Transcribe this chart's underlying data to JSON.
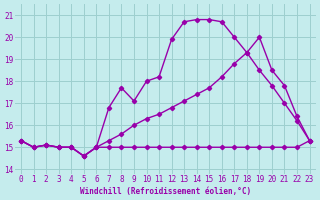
{
  "background_color": "#c5eced",
  "grid_color": "#9dcfcf",
  "line_color": "#9900aa",
  "marker": "D",
  "markersize": 2.2,
  "linewidth": 1.0,
  "xlim": [
    -0.5,
    23.5
  ],
  "ylim": [
    13.8,
    21.5
  ],
  "yticks": [
    14,
    15,
    16,
    17,
    18,
    19,
    20,
    21
  ],
  "xticks": [
    0,
    1,
    2,
    3,
    4,
    5,
    6,
    7,
    8,
    9,
    10,
    11,
    12,
    13,
    14,
    15,
    16,
    17,
    18,
    19,
    20,
    21,
    22,
    23
  ],
  "xlabel": "Windchill (Refroidissement éolien,°C)",
  "line1_x": [
    0,
    1,
    2,
    3,
    4,
    5,
    6,
    7,
    8,
    9,
    10,
    11,
    12,
    13,
    14,
    15,
    16,
    17,
    18,
    19,
    20,
    21,
    22,
    23
  ],
  "line1_y": [
    15.3,
    15.0,
    15.1,
    15.0,
    15.0,
    14.6,
    15.0,
    15.0,
    15.0,
    15.0,
    15.0,
    15.0,
    15.0,
    15.0,
    15.0,
    15.0,
    15.0,
    15.0,
    15.0,
    15.0,
    15.0,
    15.0,
    15.0,
    15.3
  ],
  "line2_x": [
    0,
    1,
    2,
    3,
    4,
    5,
    6,
    7,
    8,
    9,
    10,
    11,
    12,
    13,
    14,
    15,
    16,
    17,
    18,
    19,
    20,
    21,
    22,
    23
  ],
  "line2_y": [
    15.3,
    15.0,
    15.1,
    15.0,
    15.0,
    14.6,
    15.0,
    15.3,
    15.6,
    16.0,
    16.3,
    16.5,
    16.8,
    17.1,
    17.4,
    17.7,
    18.2,
    18.8,
    19.3,
    20.0,
    18.5,
    17.8,
    16.4,
    15.3
  ],
  "line3_x": [
    0,
    1,
    2,
    3,
    4,
    5,
    6,
    7,
    8,
    9,
    10,
    11,
    12,
    13,
    14,
    15,
    16,
    17,
    18,
    19,
    20,
    21,
    22,
    23
  ],
  "line3_y": [
    15.3,
    15.0,
    15.1,
    15.0,
    15.0,
    14.6,
    15.0,
    16.8,
    17.7,
    17.1,
    18.0,
    18.2,
    19.9,
    20.7,
    20.8,
    20.8,
    20.7,
    20.0,
    19.3,
    18.5,
    17.8,
    17.0,
    16.2,
    15.3
  ],
  "tick_fontsize": 5.5,
  "xlabel_fontsize": 5.5,
  "tick_color": "#9900aa"
}
